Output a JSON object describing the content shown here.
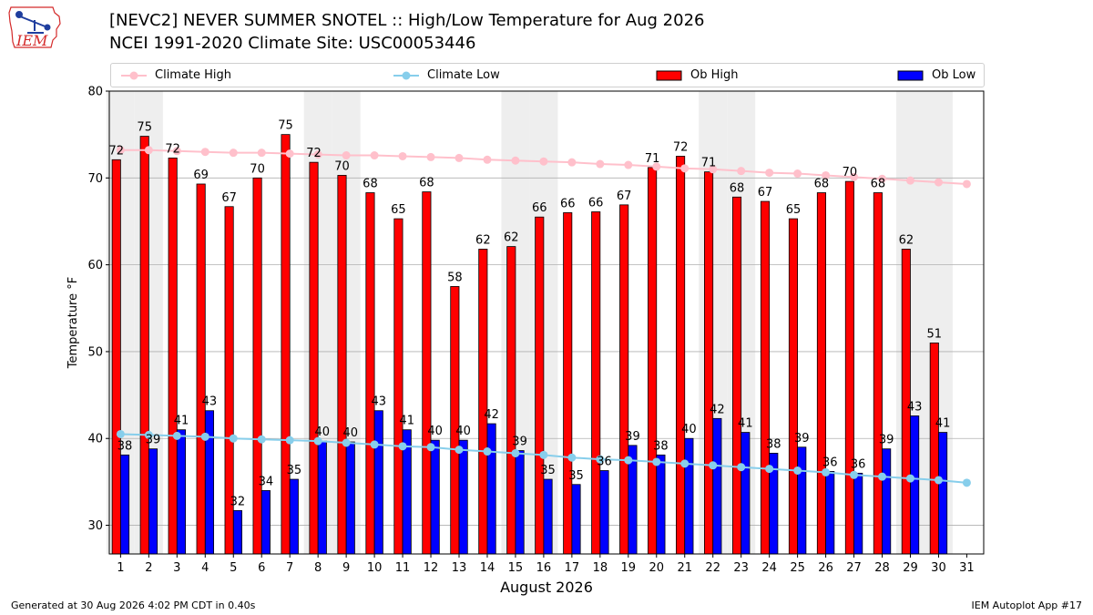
{
  "header": {
    "title_line1": "[NEVC2] NEVER SUMMER SNOTEL :: High/Low Temperature for Aug 2026",
    "title_line2": "NCEI 1991-2020 Climate Site: USC00053446",
    "logo_text": "IEM"
  },
  "footer": {
    "generated": "Generated at 30 Aug 2026 4:02 PM CDT in 0.40s",
    "app": "IEM Autoplot App #17"
  },
  "colors": {
    "climate_high": "#ffc0cb",
    "climate_low": "#87ceeb",
    "ob_high": "#ff0000",
    "ob_low": "#0000ff",
    "weekend_band": "#eeeeee",
    "grid": "#b0b0b0",
    "logo_red": "#d42a2a",
    "logo_blue": "#1f3e9e"
  },
  "chart_data": {
    "type": "bar",
    "title": "[NEVC2] NEVER SUMMER SNOTEL :: High/Low Temperature for Aug 2026",
    "xlabel": "August 2026",
    "ylabel": "Temperature °F",
    "ylim": [
      26.7,
      80
    ],
    "yticks": [
      30,
      40,
      50,
      60,
      70,
      80
    ],
    "xlim": [
      0.6,
      31.6
    ],
    "grid": "horizontal",
    "legend_position": "top",
    "days": [
      1,
      2,
      3,
      4,
      5,
      6,
      7,
      8,
      9,
      10,
      11,
      12,
      13,
      14,
      15,
      16,
      17,
      18,
      19,
      20,
      21,
      22,
      23,
      24,
      25,
      26,
      27,
      28,
      29,
      30,
      31
    ],
    "shaded_days": [
      1,
      2,
      8,
      9,
      15,
      16,
      22,
      23,
      29,
      30
    ],
    "series": [
      {
        "name": "Ob High",
        "type": "bar",
        "values": [
          72.1,
          74.8,
          72.3,
          69.3,
          66.7,
          70.0,
          75.0,
          71.8,
          70.3,
          68.3,
          65.3,
          68.4,
          57.5,
          61.8,
          62.1,
          65.5,
          66.0,
          66.1,
          66.9,
          71.2,
          72.5,
          70.7,
          67.8,
          67.3,
          65.3,
          68.3,
          69.6,
          68.3,
          61.8,
          51.0
        ],
        "labels": [
          "72",
          "75",
          "72",
          "69",
          "67",
          "70",
          "75",
          "72",
          "70",
          "68",
          "65",
          "68",
          "58",
          "62",
          "62",
          "66",
          "66",
          "66",
          "67",
          "71",
          "72",
          "71",
          "68",
          "67",
          "65",
          "68",
          "70",
          "68",
          "62",
          "51"
        ]
      },
      {
        "name": "Ob Low",
        "type": "bar",
        "values": [
          38.1,
          38.8,
          41.0,
          43.2,
          31.7,
          34.0,
          35.3,
          39.7,
          39.6,
          43.2,
          41.0,
          39.8,
          39.8,
          41.7,
          38.6,
          35.3,
          34.7,
          36.3,
          39.2,
          38.1,
          40.0,
          42.3,
          40.7,
          38.3,
          39.0,
          36.2,
          36.0,
          38.8,
          42.6,
          40.7
        ],
        "labels": [
          "38",
          "39",
          "41",
          "43",
          "32",
          "34",
          "35",
          "40",
          "40",
          "43",
          "41",
          "40",
          "40",
          "42",
          "39",
          "35",
          "35",
          "36",
          "39",
          "38",
          "40",
          "42",
          "41",
          "38",
          "39",
          "36",
          "36",
          "39",
          "43",
          "41"
        ]
      },
      {
        "name": "Climate High",
        "type": "line",
        "values": [
          73.2,
          73.2,
          73.1,
          73.0,
          72.9,
          72.9,
          72.8,
          72.7,
          72.6,
          72.6,
          72.5,
          72.4,
          72.3,
          72.1,
          72.0,
          71.9,
          71.8,
          71.6,
          71.5,
          71.3,
          71.1,
          71.0,
          70.8,
          70.6,
          70.5,
          70.3,
          70.1,
          69.9,
          69.7,
          69.5,
          69.3
        ]
      },
      {
        "name": "Climate Low",
        "type": "line",
        "values": [
          40.5,
          40.4,
          40.3,
          40.2,
          40.0,
          39.9,
          39.8,
          39.7,
          39.5,
          39.3,
          39.1,
          39.0,
          38.7,
          38.5,
          38.3,
          38.1,
          37.8,
          37.6,
          37.5,
          37.3,
          37.1,
          36.9,
          36.7,
          36.5,
          36.3,
          36.1,
          35.8,
          35.6,
          35.4,
          35.2,
          34.9
        ]
      }
    ]
  }
}
